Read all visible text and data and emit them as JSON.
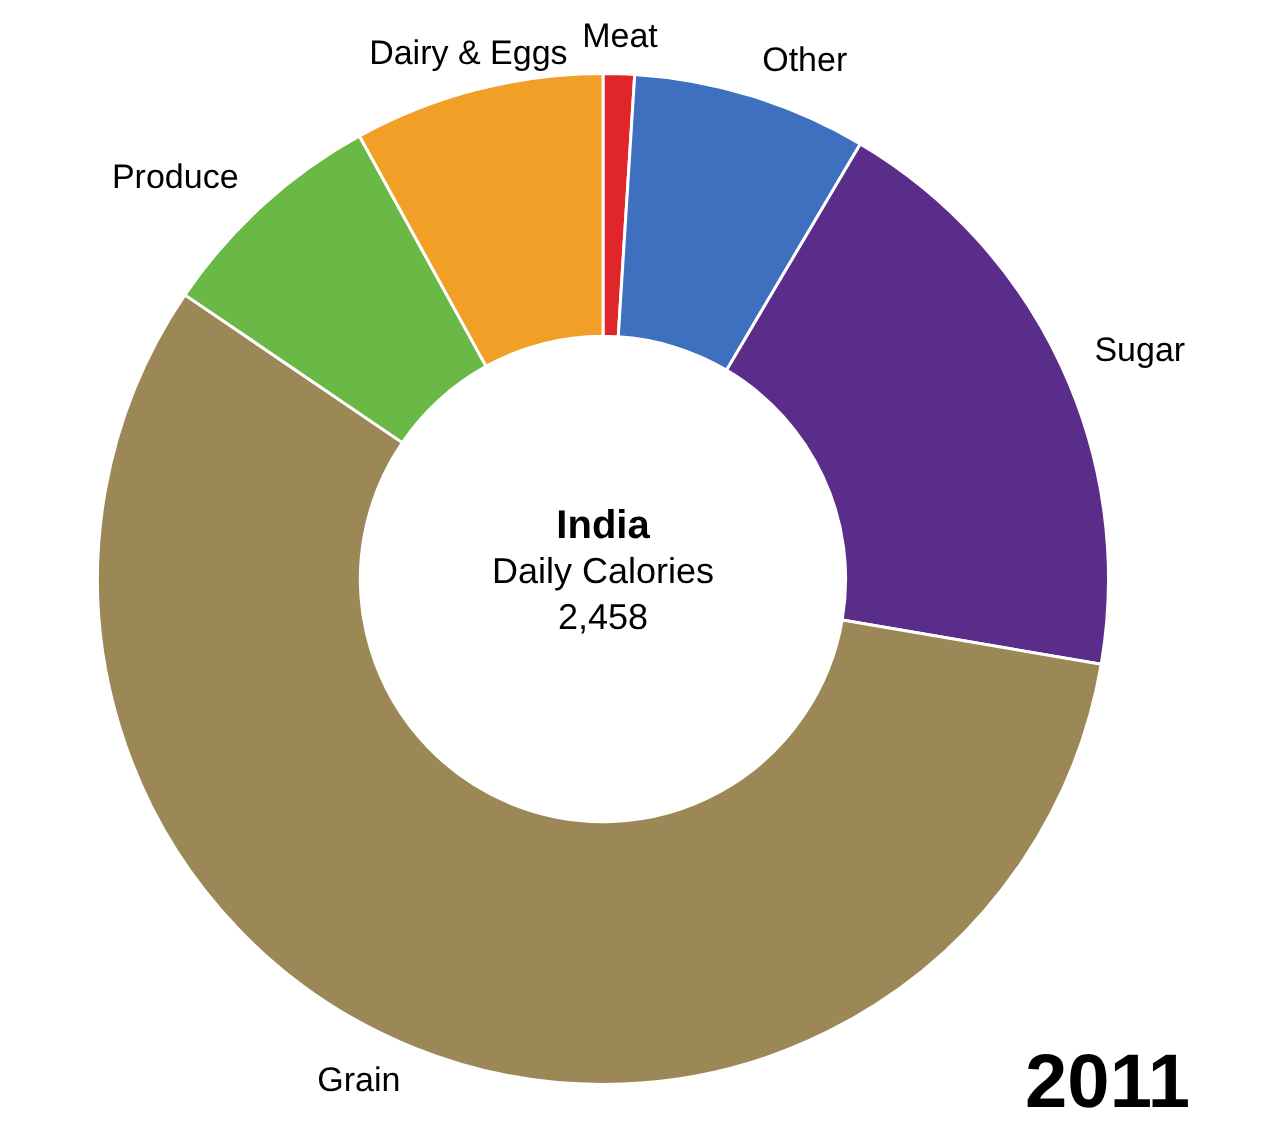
{
  "chart_data": {
    "type": "donut",
    "title": "India",
    "subtitle": "Daily Calories",
    "categories": [
      "Meat",
      "Other",
      "Sugar",
      "Grain",
      "Produce",
      "Dairy & Eggs"
    ],
    "values": [
      1,
      7.5,
      19.2,
      56.8,
      7.5,
      8
    ],
    "colors": [
      "#e0262a",
      "#3f6fbf",
      "#5b2d8a",
      "#9c8757",
      "#6ab845",
      "#f29f27"
    ],
    "annotations": [
      "2,458",
      "2011"
    ],
    "legend": false
  }
}
